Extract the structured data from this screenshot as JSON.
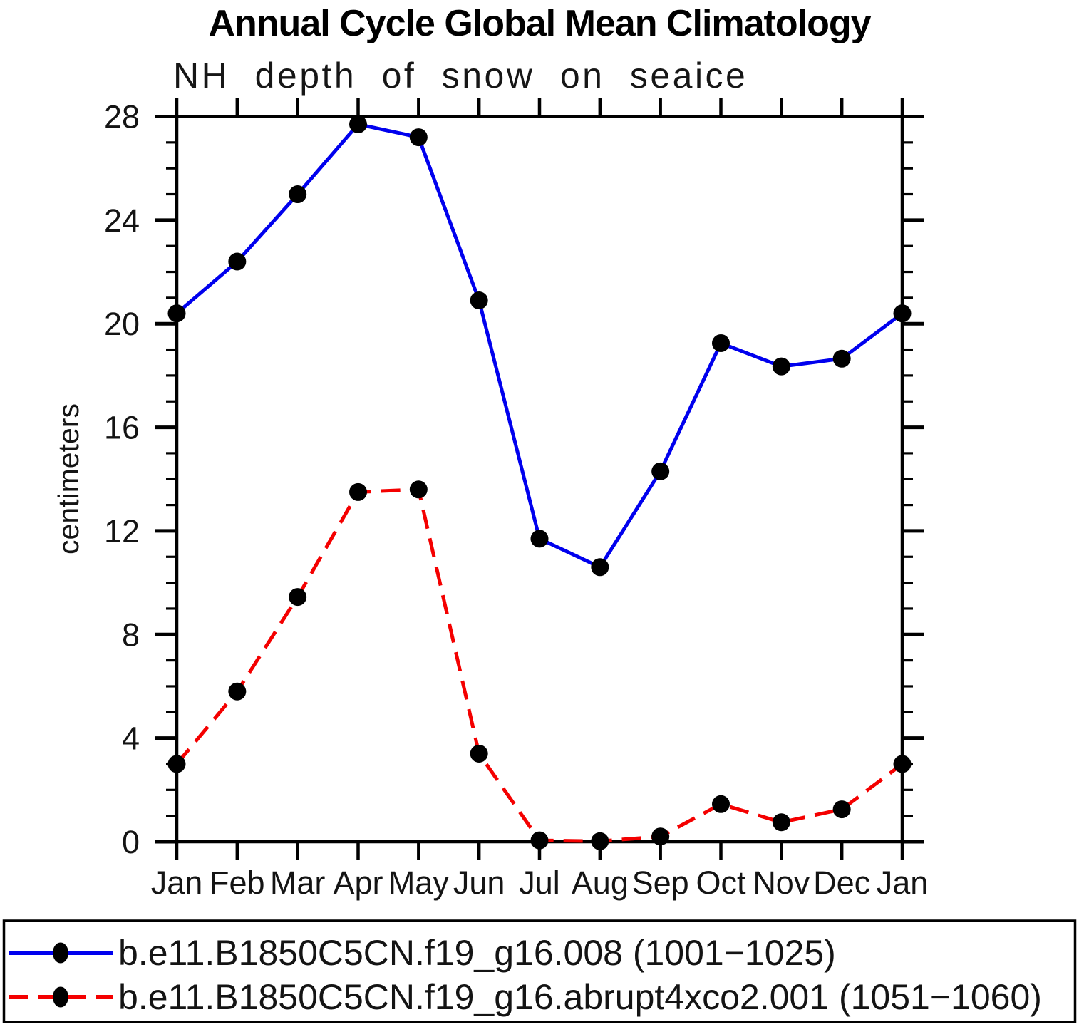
{
  "title": "Annual Cycle Global Mean Climatology",
  "subtitle": "NH depth of snow on seaice",
  "chart_data": {
    "type": "line",
    "categories": [
      "Jan",
      "Feb",
      "Mar",
      "Apr",
      "May",
      "Jun",
      "Jul",
      "Aug",
      "Sep",
      "Oct",
      "Nov",
      "Dec",
      "Jan"
    ],
    "ylabel": "centimeters",
    "ylim": [
      0,
      28
    ],
    "ytick_major_step": 4,
    "ytick_minor_step": 1,
    "ytick_labels": [
      "0",
      "4",
      "8",
      "12",
      "16",
      "20",
      "24",
      "28"
    ],
    "grid": false,
    "legend_position": "bottom-box",
    "frame_color": "#000000",
    "marker_color": "#000000",
    "series": [
      {
        "name": "b.e11.B1850C5CN.f19_g16.008 (1001−1025)",
        "color": "#0000ee",
        "style": "solid",
        "marker": "filled-circle",
        "values": [
          20.4,
          22.4,
          25.0,
          27.7,
          27.2,
          20.9,
          11.7,
          10.6,
          14.3,
          19.25,
          18.35,
          18.65,
          20.4
        ]
      },
      {
        "name": "b.e11.B1850C5CN.f19_g16.abrupt4xco2.001 (1051−1060)",
        "color": "#f40000",
        "style": "dashed",
        "marker": "filled-circle",
        "values": [
          3.0,
          5.8,
          9.45,
          13.5,
          13.6,
          3.4,
          0.05,
          0.02,
          0.2,
          1.45,
          0.75,
          1.25,
          3.0
        ]
      }
    ]
  }
}
